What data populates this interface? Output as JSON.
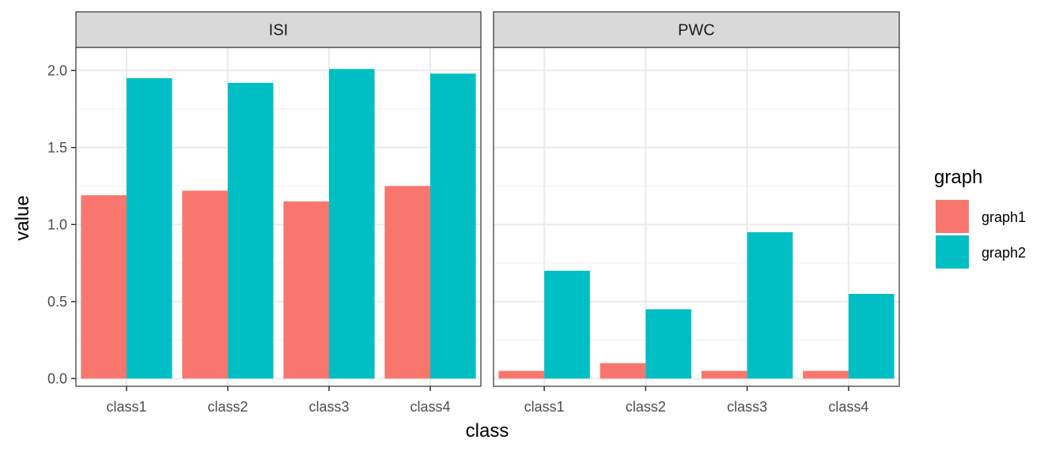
{
  "chart_data": {
    "type": "bar",
    "xlabel": "class",
    "ylabel": "value",
    "ylim": [
      -0.05,
      2.15
    ],
    "yticks": [
      "0.0",
      "0.5",
      "1.0",
      "1.5",
      "2.0"
    ],
    "grid": true,
    "legend": {
      "title": "graph",
      "placement": "right",
      "entries": [
        {
          "name": "graph1",
          "color": "#F8766D"
        },
        {
          "name": "graph2",
          "color": "#00BFC4"
        }
      ]
    },
    "categories": [
      "class1",
      "class2",
      "class3",
      "class4"
    ],
    "panels": [
      {
        "title": "ISI",
        "series": [
          {
            "name": "graph1",
            "values": [
              1.19,
              1.22,
              1.15,
              1.25
            ]
          },
          {
            "name": "graph2",
            "values": [
              1.95,
              1.92,
              2.01,
              1.98
            ]
          }
        ]
      },
      {
        "title": "PWC",
        "series": [
          {
            "name": "graph1",
            "values": [
              0.05,
              0.1,
              0.05,
              0.05
            ]
          },
          {
            "name": "graph2",
            "values": [
              0.7,
              0.45,
              0.95,
              0.55
            ]
          }
        ]
      }
    ]
  }
}
